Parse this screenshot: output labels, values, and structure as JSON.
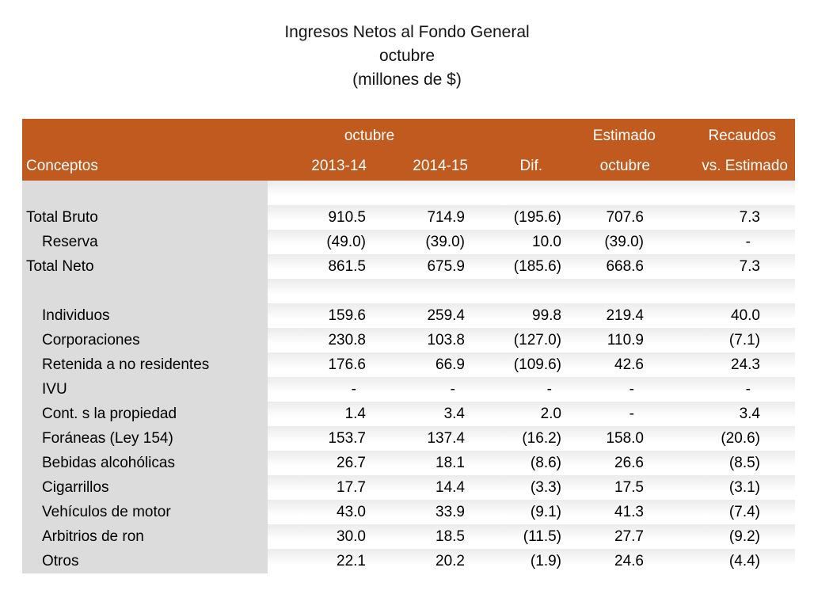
{
  "title": {
    "line1": "Ingresos Netos al Fondo General",
    "line2": "octubre",
    "line3": "(millones de $)"
  },
  "chart_data": {
    "type": "table",
    "title": "Ingresos Netos al Fondo General octubre (millones de $)",
    "group_headers": {
      "octubre": "octubre",
      "estimado": "Estimado",
      "recaudos": "Recaudos"
    },
    "columns": [
      "Conceptos",
      "2013-14",
      "2014-15",
      "Dif.",
      "octubre",
      "vs. Estimado"
    ],
    "rows": [
      {
        "label": "",
        "spacer": true,
        "indent": false,
        "values": [
          "",
          "",
          "",
          "",
          ""
        ]
      },
      {
        "label": "Total Bruto",
        "spacer": false,
        "indent": false,
        "values": [
          "910.5",
          "714.9",
          "(195.6)",
          "707.6",
          "7.3"
        ]
      },
      {
        "label": "Reserva",
        "spacer": false,
        "indent": true,
        "values": [
          "(49.0)",
          "(39.0)",
          "10.0",
          "(39.0)",
          "-"
        ]
      },
      {
        "label": "Total Neto",
        "spacer": false,
        "indent": false,
        "values": [
          "861.5",
          "675.9",
          "(185.6)",
          "668.6",
          "7.3"
        ]
      },
      {
        "label": "",
        "spacer": true,
        "indent": false,
        "values": [
          "",
          "",
          "",
          "",
          ""
        ]
      },
      {
        "label": "Individuos",
        "spacer": false,
        "indent": true,
        "values": [
          "159.6",
          "259.4",
          "99.8",
          "219.4",
          "40.0"
        ]
      },
      {
        "label": "Corporaciones",
        "spacer": false,
        "indent": true,
        "values": [
          "230.8",
          "103.8",
          "(127.0)",
          "110.9",
          "(7.1)"
        ]
      },
      {
        "label": "Retenida a no residentes",
        "spacer": false,
        "indent": true,
        "values": [
          "176.6",
          "66.9",
          "(109.6)",
          "42.6",
          "24.3"
        ]
      },
      {
        "label": "IVU",
        "spacer": false,
        "indent": true,
        "values": [
          "-",
          "-",
          "-",
          "-",
          "-"
        ]
      },
      {
        "label": "Cont. s la propiedad",
        "spacer": false,
        "indent": true,
        "values": [
          "1.4",
          "3.4",
          "2.0",
          "-",
          "3.4"
        ]
      },
      {
        "label": "Foráneas (Ley 154)",
        "spacer": false,
        "indent": true,
        "values": [
          "153.7",
          "137.4",
          "(16.2)",
          "158.0",
          "(20.6)"
        ]
      },
      {
        "label": "Bebidas alcohólicas",
        "spacer": false,
        "indent": true,
        "values": [
          "26.7",
          "18.1",
          "(8.6)",
          "26.6",
          "(8.5)"
        ]
      },
      {
        "label": "Cigarrillos",
        "spacer": false,
        "indent": true,
        "values": [
          "17.7",
          "14.4",
          "(3.3)",
          "17.5",
          "(3.1)"
        ]
      },
      {
        "label": "Vehículos de motor",
        "spacer": false,
        "indent": true,
        "values": [
          "43.0",
          "33.9",
          "(9.1)",
          "41.3",
          "(7.4)"
        ]
      },
      {
        "label": "Arbitrios de ron",
        "spacer": false,
        "indent": true,
        "values": [
          "30.0",
          "18.5",
          "(11.5)",
          "27.7",
          "(9.2)"
        ]
      },
      {
        "label": "Otros",
        "spacer": false,
        "indent": true,
        "values": [
          "22.1",
          "20.2",
          "(1.9)",
          "24.6",
          "(4.4)"
        ]
      }
    ],
    "colors": {
      "header_bg": "#C05A1E",
      "header_text": "#FFFFFF",
      "label_column_bg": "#DCDCDC",
      "row_stripe_top": "#EBEBEB",
      "body_text": "#000000"
    }
  }
}
